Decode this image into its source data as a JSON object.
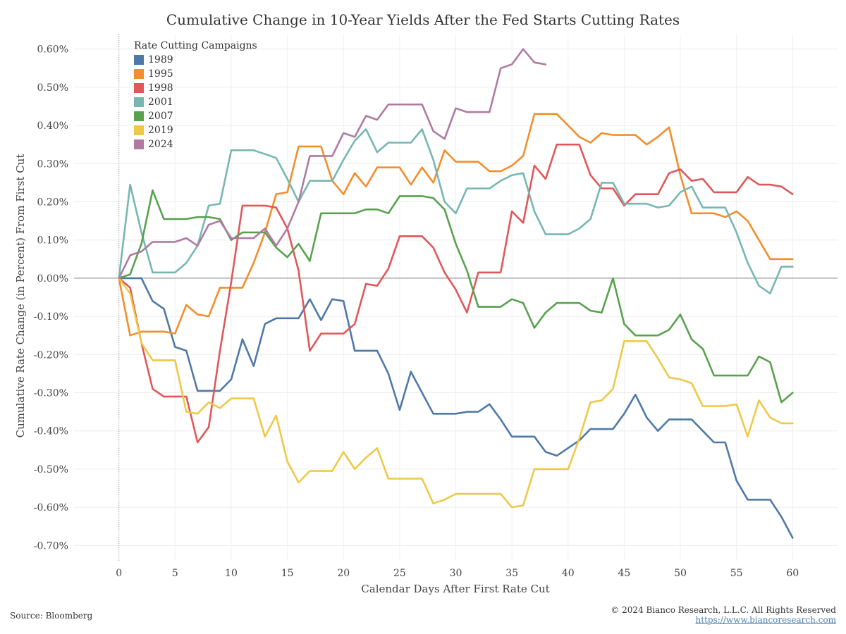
{
  "title": "Cumulative Change in 10-Year Yields After the Fed Starts Cutting Rates",
  "source": "Source: Bloomberg",
  "copyright": "© 2024 Bianco Research, L.L.C. All Rights Reserved",
  "website": "https://www.biancoresearch.com",
  "chart_data": {
    "type": "line",
    "xlabel": "Calendar Days After First Rate Cut",
    "ylabel": "Cumulative Rate Change (in Percent) From First Cut",
    "xlim": [
      -4,
      64
    ],
    "ylim": [
      -0.74,
      0.64
    ],
    "x_ticks": [
      0,
      5,
      10,
      15,
      20,
      25,
      30,
      35,
      40,
      45,
      50,
      55,
      60
    ],
    "y_ticks": [
      0.6,
      0.5,
      0.4,
      0.3,
      0.2,
      0.1,
      0.0,
      -0.1,
      -0.2,
      -0.3,
      -0.4,
      -0.5,
      -0.6,
      -0.7
    ],
    "y_tick_labels": [
      "0.60%",
      "0.50%",
      "0.40%",
      "0.30%",
      "0.20%",
      "0.10%",
      "0.00%",
      "-0.10%",
      "-0.20%",
      "-0.30%",
      "-0.40%",
      "-0.50%",
      "-0.60%",
      "-0.70%"
    ],
    "legend_title": "Rate Cutting Campaigns",
    "legend_position": "top-left",
    "grid": true,
    "series": [
      {
        "name": "1989",
        "color": "#4e79a7",
        "values": [
          0.0,
          0.0,
          0.0,
          -0.06,
          -0.08,
          -0.18,
          -0.19,
          -0.295,
          -0.295,
          -0.295,
          -0.265,
          -0.16,
          -0.23,
          -0.12,
          -0.105,
          -0.105,
          -0.105,
          -0.055,
          -0.11,
          -0.055,
          -0.06,
          -0.19,
          -0.19,
          -0.19,
          -0.25,
          -0.345,
          -0.245,
          -0.3,
          -0.355,
          -0.355,
          -0.355,
          -0.35,
          -0.35,
          -0.33,
          -0.37,
          -0.415,
          -0.415,
          -0.415,
          -0.455,
          -0.465,
          -0.445,
          -0.425,
          -0.395,
          -0.395,
          -0.395,
          -0.355,
          -0.305,
          -0.365,
          -0.4,
          -0.37,
          -0.37,
          -0.37,
          -0.4,
          -0.43,
          -0.43,
          -0.53,
          -0.58,
          -0.58,
          -0.58,
          -0.625,
          -0.68
        ]
      },
      {
        "name": "1995",
        "color": "#f28e2b",
        "values": [
          0.0,
          -0.15,
          -0.14,
          -0.14,
          -0.14,
          -0.145,
          -0.07,
          -0.095,
          -0.1,
          -0.025,
          -0.025,
          -0.025,
          0.04,
          0.12,
          0.22,
          0.225,
          0.345,
          0.345,
          0.345,
          0.255,
          0.22,
          0.275,
          0.24,
          0.29,
          0.29,
          0.29,
          0.245,
          0.29,
          0.25,
          0.335,
          0.305,
          0.305,
          0.305,
          0.28,
          0.28,
          0.295,
          0.32,
          0.43,
          0.43,
          0.43,
          0.4,
          0.37,
          0.355,
          0.38,
          0.375,
          0.375,
          0.375,
          0.35,
          0.37,
          0.395,
          0.27,
          0.17,
          0.17,
          0.17,
          0.16,
          0.175,
          0.15,
          0.1,
          0.05,
          0.05,
          0.05
        ]
      },
      {
        "name": "1998",
        "color": "#e15759",
        "values": [
          0.0,
          -0.025,
          -0.17,
          -0.29,
          -0.31,
          -0.31,
          -0.31,
          -0.43,
          -0.39,
          -0.19,
          -0.01,
          0.19,
          0.19,
          0.19,
          0.185,
          0.13,
          0.02,
          -0.19,
          -0.145,
          -0.145,
          -0.145,
          -0.12,
          -0.015,
          -0.02,
          0.025,
          0.11,
          0.11,
          0.11,
          0.08,
          0.015,
          -0.03,
          -0.09,
          0.015,
          0.015,
          0.015,
          0.175,
          0.145,
          0.295,
          0.26,
          0.35,
          0.35,
          0.35,
          0.27,
          0.235,
          0.235,
          0.19,
          0.22,
          0.22,
          0.22,
          0.275,
          0.285,
          0.255,
          0.26,
          0.225,
          0.225,
          0.225,
          0.265,
          0.245,
          0.245,
          0.24,
          0.22
        ]
      },
      {
        "name": "2001",
        "color": "#76b7b2",
        "values": [
          0.0,
          0.245,
          0.12,
          0.015,
          0.015,
          0.015,
          0.04,
          0.085,
          0.19,
          0.195,
          0.335,
          0.335,
          0.335,
          0.325,
          0.315,
          0.26,
          0.2,
          0.255,
          0.255,
          0.255,
          0.31,
          0.36,
          0.39,
          0.33,
          0.355,
          0.355,
          0.355,
          0.39,
          0.31,
          0.2,
          0.17,
          0.235,
          0.235,
          0.235,
          0.255,
          0.27,
          0.275,
          0.175,
          0.115,
          0.115,
          0.115,
          0.13,
          0.155,
          0.25,
          0.25,
          0.195,
          0.195,
          0.195,
          0.185,
          0.19,
          0.225,
          0.24,
          0.185,
          0.185,
          0.185,
          0.12,
          0.04,
          -0.02,
          -0.04,
          0.03,
          0.03
        ]
      },
      {
        "name": "2007",
        "color": "#59a14f",
        "values": [
          0.0,
          0.01,
          0.09,
          0.23,
          0.155,
          0.155,
          0.155,
          0.16,
          0.16,
          0.155,
          0.1,
          0.12,
          0.12,
          0.12,
          0.08,
          0.055,
          0.09,
          0.045,
          0.17,
          0.17,
          0.17,
          0.17,
          0.18,
          0.18,
          0.17,
          0.215,
          0.215,
          0.215,
          0.21,
          0.18,
          0.09,
          0.02,
          -0.075,
          -0.075,
          -0.075,
          -0.055,
          -0.065,
          -0.13,
          -0.09,
          -0.065,
          -0.065,
          -0.065,
          -0.085,
          -0.09,
          0.0,
          -0.12,
          -0.15,
          -0.15,
          -0.15,
          -0.135,
          -0.095,
          -0.16,
          -0.185,
          -0.255,
          -0.255,
          -0.255,
          -0.255,
          -0.205,
          -0.22,
          -0.325,
          -0.3
        ]
      },
      {
        "name": "2019",
        "color": "#edc948",
        "values": [
          0.0,
          -0.04,
          -0.17,
          -0.215,
          -0.215,
          -0.215,
          -0.35,
          -0.355,
          -0.325,
          -0.34,
          -0.315,
          -0.315,
          -0.315,
          -0.415,
          -0.36,
          -0.48,
          -0.535,
          -0.505,
          -0.505,
          -0.505,
          -0.455,
          -0.5,
          -0.47,
          -0.445,
          -0.525,
          -0.525,
          -0.525,
          -0.525,
          -0.59,
          -0.58,
          -0.565,
          -0.565,
          -0.565,
          -0.565,
          -0.565,
          -0.6,
          -0.595,
          -0.5,
          -0.5,
          -0.5,
          -0.5,
          -0.42,
          -0.325,
          -0.32,
          -0.29,
          -0.165,
          -0.165,
          -0.165,
          -0.21,
          -0.26,
          -0.265,
          -0.275,
          -0.335,
          -0.335,
          -0.335,
          -0.33,
          -0.415,
          -0.32,
          -0.365,
          -0.38,
          -0.38
        ]
      },
      {
        "name": "2024",
        "color": "#b07aa1",
        "values": [
          0.0,
          0.06,
          0.07,
          0.095,
          0.095,
          0.095,
          0.105,
          0.085,
          0.14,
          0.15,
          0.105,
          0.105,
          0.105,
          0.13,
          0.085,
          0.13,
          0.2,
          0.32,
          0.32,
          0.32,
          0.38,
          0.37,
          0.425,
          0.415,
          0.455,
          0.455,
          0.455,
          0.455,
          0.385,
          0.365,
          0.445,
          0.435,
          0.435,
          0.435,
          0.55,
          0.56,
          0.6,
          0.565,
          0.56
        ]
      }
    ]
  }
}
